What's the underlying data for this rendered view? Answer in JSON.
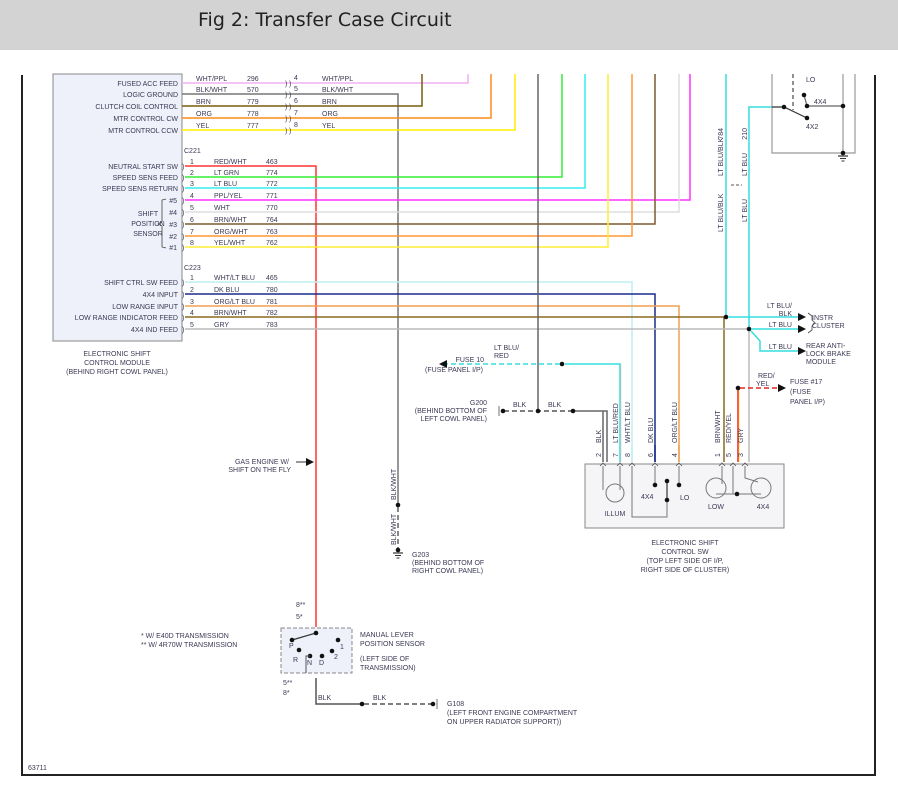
{
  "header": {
    "title": "Fig 2: Transfer Case Circuit"
  },
  "figure_id": "63711",
  "module": {
    "lines": [
      "ELECTRONIC SHIFT",
      "CONTROL MODULE",
      "(BEHIND RIGHT COWL PANEL)"
    ],
    "fill": "#eef0fa"
  },
  "top_connector": {
    "rows": [
      {
        "function": "FUSED ACC FEED",
        "color": "WHT/PPL",
        "circuit": "296",
        "pin": "4",
        "color_right": "WHT/PPL",
        "hex": "#f0b0f0"
      },
      {
        "function": "LOGIC GROUND",
        "color": "BLK/WHT",
        "circuit": "570",
        "pin": "5",
        "color_right": "BLK/WHT",
        "hex": "#777777"
      },
      {
        "function": "CLUTCH COIL CONTROL",
        "color": "BRN",
        "circuit": "779",
        "pin": "6",
        "color_right": "BRN",
        "hex": "#7a5a10"
      },
      {
        "function": "MTR CONTROL CW",
        "color": "ORG",
        "circuit": "778",
        "pin": "7",
        "color_right": "ORG",
        "hex": "#ff8c1a"
      },
      {
        "function": "MTR CONTROL CCW",
        "color": "YEL",
        "circuit": "777",
        "pin": "8",
        "color_right": "YEL",
        "hex": "#ffee00"
      }
    ]
  },
  "c221": {
    "label": "C221",
    "group_label": [
      "SHIFT",
      "POSITION",
      "SENSOR"
    ],
    "rows": [
      {
        "pin": "1",
        "function": "NEUTRAL START SW",
        "color": "RED/WHT",
        "circuit": "463",
        "hex": "#ff3333"
      },
      {
        "pin": "2",
        "function": "SPEED SENS FEED",
        "color": "LT GRN",
        "circuit": "774",
        "hex": "#33ee33"
      },
      {
        "pin": "3",
        "function": "SPEED SENS RETURN",
        "color": "LT BLU",
        "circuit": "772",
        "hex": "#33eeee"
      },
      {
        "pin": "4",
        "function": "#5",
        "color": "PPL/YEL",
        "circuit": "771",
        "hex": "#ff33ff"
      },
      {
        "pin": "5",
        "function": "#4",
        "color": "WHT",
        "circuit": "770",
        "hex": "#dddddd"
      },
      {
        "pin": "6",
        "function": "#3",
        "color": "BRN/WHT",
        "circuit": "764",
        "hex": "#7a5a30"
      },
      {
        "pin": "7",
        "function": "#2",
        "color": "ORG/WHT",
        "circuit": "763",
        "hex": "#ff9933"
      },
      {
        "pin": "8",
        "function": "#1",
        "color": "YEL/WHT",
        "circuit": "762",
        "hex": "#ffee33"
      }
    ]
  },
  "c223": {
    "label": "C223",
    "rows": [
      {
        "pin": "1",
        "function": "SHIFT CTRL SW FEED",
        "color": "WHT/LT BLU",
        "circuit": "465",
        "hex": "#bfefef"
      },
      {
        "pin": "2",
        "function": "4X4 INPUT",
        "color": "DK BLU",
        "circuit": "780",
        "hex": "#1a2a8a"
      },
      {
        "pin": "3",
        "function": "LOW RANGE INPUT",
        "color": "ORG/LT BLU",
        "circuit": "781",
        "hex": "#f0a050"
      },
      {
        "pin": "4",
        "function": "LOW RANGE INDICATOR FEED",
        "color": "BRN/WHT",
        "circuit": "782",
        "hex": "#8a6a20"
      },
      {
        "pin": "5",
        "function": "4X4 IND FEED",
        "color": "GRY",
        "circuit": "783",
        "hex": "#bbbbbb"
      }
    ]
  },
  "top_right": {
    "wire_a": {
      "color": "LT BLU/BLK",
      "circuit": "784",
      "color_below": "LT BLU/BLK"
    },
    "wire_b": {
      "color": "LT BLU",
      "circuit": "210",
      "color_below": "LT BLU"
    },
    "switch_labels": {
      "lo": "LO",
      "4x4": "4X4",
      "4x2": "4X2"
    }
  },
  "destinations": {
    "instr_cluster": {
      "wire1": "LT BLU/\nBLK",
      "wire1_a": "LT BLU/",
      "wire1_b": "BLK",
      "wire2": "LT BLU",
      "label": [
        "INSTR",
        "CLUSTER"
      ]
    },
    "abs": {
      "wire": "LT BLU",
      "label": [
        "REAR ANTI-",
        "LOCK BRAKE",
        "MODULE"
      ]
    },
    "fuse17": {
      "wire_a": "RED/",
      "wire_b": "YEL",
      "label": [
        "FUSE #17",
        "(FUSE",
        "PANEL I/P)"
      ]
    },
    "fuse10": {
      "wire_a": "LT BLU/",
      "wire_b": "RED",
      "label": [
        "FUSE 10",
        "(FUSE PANEL I/P)"
      ]
    },
    "g200": {
      "wire_a": "BLK",
      "wire_b": "BLK",
      "label": [
        "G200",
        "(BEHIND BOTTOM OF",
        "LEFT COWL PANEL)"
      ]
    },
    "g203": {
      "wire_a": "BLK/WHT",
      "wire_b": "BLK/WHT",
      "label": [
        "G203",
        "(BEHIND BOTTOM OF",
        "RIGHT COWL PANEL)"
      ]
    },
    "g108": {
      "wire_a": "BLK",
      "wire_b": "BLK",
      "label": [
        "G108",
        "(LEFT FRONT ENGINE COMPARTMENT",
        "ON UPPER RADIATOR SUPPORT))"
      ]
    },
    "gas_engine": [
      "GAS ENGINE W/",
      "SHIFT ON THE FLY"
    ]
  },
  "shift_switch": {
    "pins": [
      {
        "pin": "2",
        "color": "BLK",
        "hex": "#666666"
      },
      {
        "pin": "7",
        "color": "LT BLU/RED",
        "hex": "#33dddd"
      },
      {
        "pin": "8",
        "color": "WHT/LT BLU",
        "hex": "#bfefef"
      },
      {
        "pin": "6",
        "color": "DK BLU",
        "hex": "#1a2a8a"
      },
      {
        "pin": "4",
        "color": "ORG/LT BLU",
        "hex": "#f0a050"
      },
      {
        "pin": "1",
        "color": "BRN/WHT",
        "hex": "#a08860"
      },
      {
        "pin": "5",
        "color": "RED/YEL",
        "hex": "#ee2222"
      },
      {
        "pin": "3",
        "color": "GRY",
        "hex": "#bbbbbb"
      }
    ],
    "labels": {
      "illum": "ILLUM",
      "4x4": "4X4",
      "lo": "LO",
      "low": "LOW",
      "4x4_lamp": "4X4"
    },
    "caption": [
      "ELECTRONIC SHIFT",
      "CONTROL SW",
      "(TOP LEFT SIDE OF I/P,",
      "RIGHT SIDE OF CLUSTER)"
    ]
  },
  "mlps": {
    "pin_top": [
      "8**",
      "5*"
    ],
    "pin_bottom": [
      "5**",
      "8*"
    ],
    "positions": [
      "P",
      "R",
      "N",
      "D",
      "2",
      "1"
    ],
    "label": [
      "MANUAL LEVER",
      "POSITION SENSOR",
      "(LEFT SIDE OF",
      "TRANSMISSION)"
    ]
  },
  "notes": [
    "* W/ E40D TRANSMISSION",
    "** W/ 4R70W TRANSMISSION"
  ]
}
